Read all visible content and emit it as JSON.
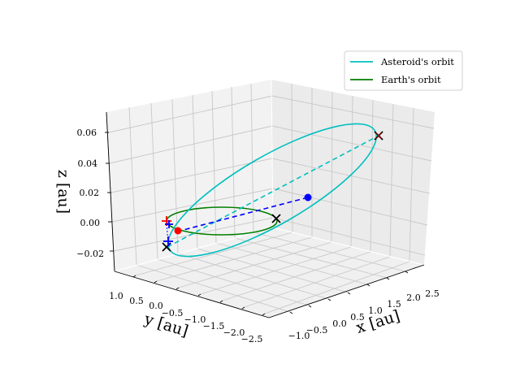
{
  "chart_data": {
    "type": "line3d",
    "title": "",
    "axes": {
      "x": {
        "label": "x [au]",
        "ticks": [
          "−1.0",
          "−0.5",
          "0.0",
          "0.5",
          "1.0",
          "1.5",
          "2.0",
          "2.5"
        ]
      },
      "y": {
        "label": "y [au]",
        "ticks": [
          "1.0",
          "0.5",
          "0.0",
          "−0.5",
          "−1.0",
          "−1.5",
          "−2.0",
          "−2.5"
        ]
      },
      "z": {
        "label": "z [au]",
        "ticks": [
          "0.06",
          "0.04",
          "0.02",
          "0.00",
          "−0.02"
        ]
      }
    },
    "grid": true,
    "legend": {
      "placement": "top-right"
    },
    "series": [
      {
        "name": "Asteroid's orbit",
        "kind": "line",
        "color": "#00bfbf",
        "style": "solid"
      },
      {
        "name": "Earth's orbit",
        "kind": "line",
        "color": "#008000",
        "style": "solid"
      }
    ],
    "markers": [
      {
        "kind": "point",
        "color": "#ff0000",
        "description": "Earth position"
      },
      {
        "kind": "point",
        "color": "#0000ff",
        "description": "Asteroid position"
      },
      {
        "kind": "x-marker",
        "color": "#000000"
      },
      {
        "kind": "plus-marker",
        "color": "#ff0000"
      },
      {
        "kind": "plus-marker",
        "color": "#0000ff"
      }
    ]
  }
}
